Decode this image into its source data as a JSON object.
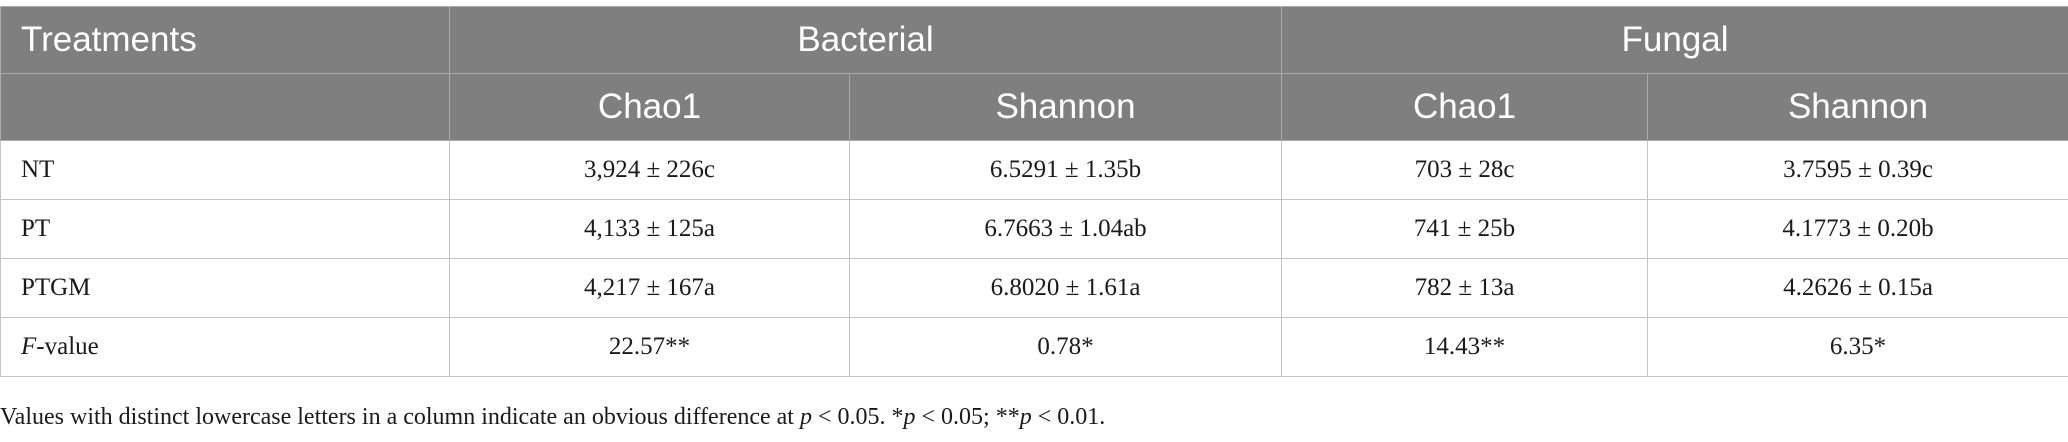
{
  "table": {
    "header": {
      "treatments": "Treatments",
      "groups": [
        "Bacterial",
        "Fungal"
      ],
      "subcolumns": [
        "Chao1",
        "Shannon",
        "Chao1",
        "Shannon"
      ]
    },
    "rows": [
      {
        "label": "NT",
        "cells": [
          "3,924 ± 226c",
          "6.5291 ± 1.35b",
          "703 ± 28c",
          "3.7595 ± 0.39c"
        ]
      },
      {
        "label": "PT",
        "cells": [
          "4,133 ± 125a",
          "6.7663 ± 1.04ab",
          "741 ± 25b",
          "4.1773 ± 0.20b"
        ]
      },
      {
        "label": "PTGM",
        "cells": [
          "4,217 ± 167a",
          "6.8020 ± 1.61a",
          "782 ± 13a",
          "4.2626 ± 0.15a"
        ]
      }
    ],
    "fvalue": {
      "label_italic": "F",
      "label_rest": "-value",
      "cells": [
        "22.57**",
        "0.78*",
        "14.43**",
        "6.35*"
      ]
    }
  },
  "footnote": {
    "part1": "Values with distinct lowercase letters in a column indicate an obvious difference at ",
    "p1": "p",
    "part2": " < 0.05. *",
    "p2": "p",
    "part3": " < 0.05; **",
    "p3": "p",
    "part4": " < 0.01."
  }
}
